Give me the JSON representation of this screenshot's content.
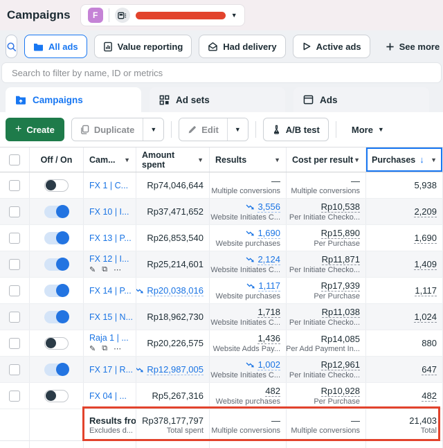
{
  "header": {
    "title": "Campaigns",
    "account": {
      "avatar_letter": "F",
      "name_redacted": true
    }
  },
  "filters": {
    "items": [
      {
        "label": "All ads",
        "active": true
      },
      {
        "label": "Value reporting",
        "active": false
      },
      {
        "label": "Had delivery",
        "active": false
      },
      {
        "label": "Active ads",
        "active": false
      },
      {
        "label": "See more",
        "active": false
      }
    ]
  },
  "search": {
    "placeholder": "Search to filter by name, ID or metrics"
  },
  "tabs": [
    {
      "label": "Campaigns",
      "selected": true
    },
    {
      "label": "Ad sets",
      "selected": false
    },
    {
      "label": "Ads",
      "selected": false
    }
  ],
  "toolbar": {
    "create_label": "Create",
    "duplicate_label": "Duplicate",
    "edit_label": "Edit",
    "ab_test_label": "A/B test",
    "more_label": "More"
  },
  "table": {
    "columns": [
      "Off / On",
      "Cam...",
      "Amount spent",
      "Results",
      "Cost per result",
      "Purchases"
    ],
    "sorted_column": "Purchases",
    "sort_direction": "descending",
    "rows": [
      {
        "name": "FX 1 | C...",
        "toggle": "off",
        "actions": false,
        "spent": {
          "v": "Rp74,046,644"
        },
        "results": {
          "v": "—",
          "sub": "Multiple conversions"
        },
        "cost": {
          "v": "—",
          "sub": "Multiple conversions"
        },
        "purchases": {
          "v": "5,938"
        }
      },
      {
        "name": "FX 10 | I...",
        "toggle": "on",
        "actions": false,
        "spent": {
          "v": "Rp37,471,652"
        },
        "results": {
          "v": "3,556",
          "trend": true,
          "link": true,
          "u": true,
          "sub": "Website Initiates C..."
        },
        "cost": {
          "v": "Rp10,538",
          "u": true,
          "sub": "Per Initiate Checko..."
        },
        "purchases": {
          "v": "2,209",
          "u": true
        }
      },
      {
        "name": "FX 13 | P...",
        "toggle": "on",
        "actions": false,
        "spent": {
          "v": "Rp26,853,540"
        },
        "results": {
          "v": "1,690",
          "trend": true,
          "link": true,
          "u": true,
          "sub": "Website purchases"
        },
        "cost": {
          "v": "Rp15,890",
          "u": true,
          "sub": "Per Purchase"
        },
        "purchases": {
          "v": "1,690",
          "u": true
        }
      },
      {
        "name": "FX 12 | I...",
        "toggle": "on",
        "actions": true,
        "spent": {
          "v": "Rp25,214,601"
        },
        "results": {
          "v": "2,124",
          "trend": true,
          "link": true,
          "u": true,
          "sub": "Website Initiates C..."
        },
        "cost": {
          "v": "Rp11,871",
          "u": true,
          "sub": "Per Initiate Checko..."
        },
        "purchases": {
          "v": "1,409",
          "u": true
        }
      },
      {
        "name": "FX 14 | P...",
        "toggle": "on",
        "actions": false,
        "spent": {
          "v": "Rp20,038,016",
          "trend": true,
          "link": true,
          "u": true
        },
        "results": {
          "v": "1,117",
          "trend": true,
          "link": true,
          "u": true,
          "sub": "Website purchases"
        },
        "cost": {
          "v": "Rp17,939",
          "u": true,
          "sub": "Per Purchase"
        },
        "purchases": {
          "v": "1,117",
          "u": true
        }
      },
      {
        "name": "FX 15 | N...",
        "toggle": "on",
        "actions": false,
        "spent": {
          "v": "Rp18,962,730"
        },
        "results": {
          "v": "1,718",
          "u": true,
          "sub": "Website Initiates C..."
        },
        "cost": {
          "v": "Rp11,038",
          "u": true,
          "sub": "Per Initiate Checko..."
        },
        "purchases": {
          "v": "1,024",
          "u": true
        }
      },
      {
        "name": "Raja 1 | ...",
        "toggle": "off",
        "actions": true,
        "spent": {
          "v": "Rp20,226,575"
        },
        "results": {
          "v": "1,436",
          "u": true,
          "sub": "Website Adds Pay..."
        },
        "cost": {
          "v": "Rp14,085",
          "sub": "Per Add Payment In..."
        },
        "purchases": {
          "v": "880"
        }
      },
      {
        "name": "FX 17 | R...",
        "toggle": "on",
        "actions": false,
        "spent": {
          "v": "Rp12,987,005",
          "trend": true,
          "link": true,
          "u": true
        },
        "results": {
          "v": "1,002",
          "trend": true,
          "link": true,
          "u": true,
          "sub": "Website Initiates C..."
        },
        "cost": {
          "v": "Rp12,961",
          "u": true,
          "sub": "Per Initiate Checko..."
        },
        "purchases": {
          "v": "647",
          "u": true
        }
      },
      {
        "name": "FX 04 | ...",
        "toggle": "off",
        "actions": false,
        "spent": {
          "v": "Rp5,267,316"
        },
        "results": {
          "v": "482",
          "u": true,
          "sub": "Website purchases"
        },
        "cost": {
          "v": "Rp10,928",
          "u": true,
          "sub": "Per Purchase"
        },
        "purchases": {
          "v": "482",
          "u": true
        }
      }
    ],
    "summary": {
      "label": "Results fro",
      "label_sub": "Excludes d...",
      "spent": "Rp378,177,797",
      "spent_sub": "Total spent",
      "results": "—",
      "results_sub": "Multiple conversions",
      "cost": "—",
      "cost_sub": "Multiple conversions",
      "purchases": "21,403",
      "purchases_sub": "Total"
    }
  },
  "icons": {
    "search-icon": "magnifier",
    "folder-icon": "solid folder",
    "value-reporting-icon": "document with bars",
    "had-delivery-icon": "envelope",
    "active-ads-icon": "outlined play triangle",
    "plus-icon": "+",
    "campaigns-tab-icon": "folder with up arrow",
    "ad-sets-tab-icon": "2x2 grid",
    "ads-tab-icon": "framed page",
    "duplicate-icon": "overlapping sheets",
    "edit-icon": "pencil",
    "ab-test-icon": "flask",
    "trend-down-icon": "declining zigzag arrow",
    "sort-desc-icon": "down arrow",
    "chevron-down-icon": "caret"
  },
  "colors": {
    "accent_blue": "#1877F2",
    "link_blue": "#1A74E4",
    "create_green": "#1E7B4A",
    "annotation_red": "#E2432C",
    "avatar_purple": "#C583D6",
    "topbar_pink": "#F4EEF1",
    "toggle_on_knob": "#2374E1",
    "toggle_off_knob": "#2B3B47"
  }
}
